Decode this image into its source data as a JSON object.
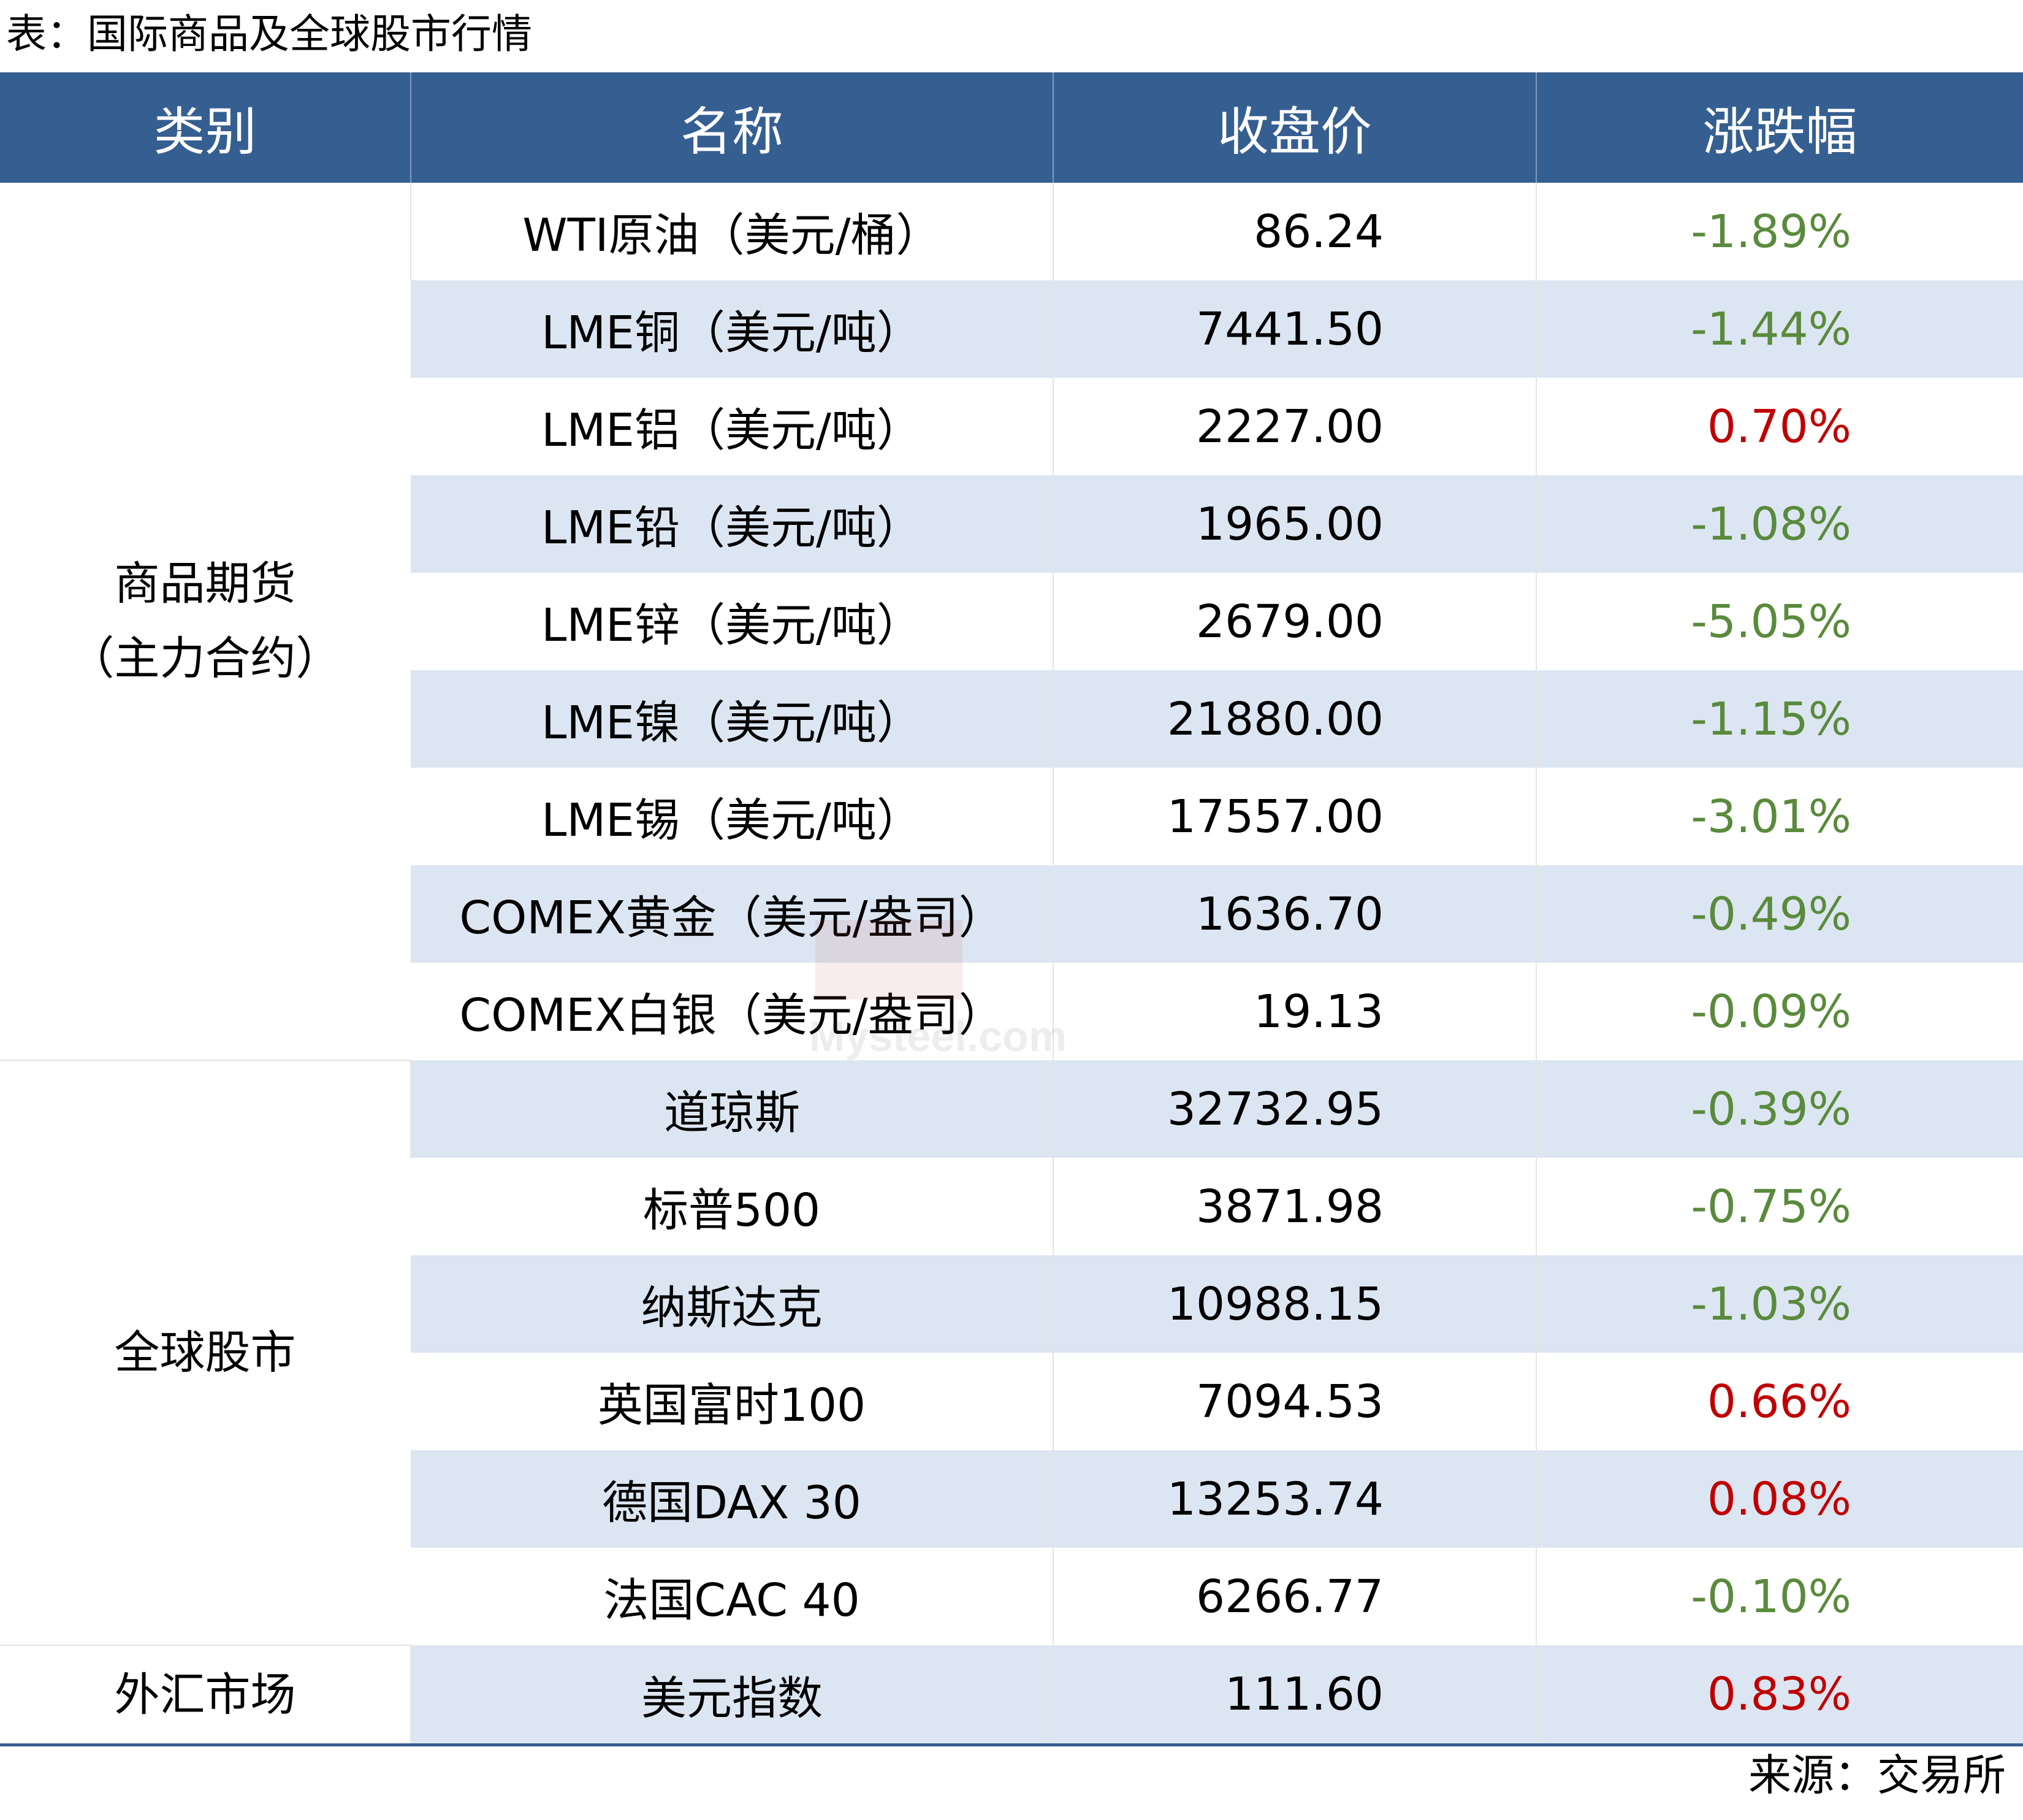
{
  "caption": "表：国际商品及全球股市行情",
  "header": {
    "col_category": "类别",
    "col_name": "名称",
    "col_close": "收盘价",
    "col_change": "涨跌幅"
  },
  "groups": [
    {
      "line1": "商品期货",
      "line2": "（主力合约）"
    },
    {
      "line1": "全球股市"
    },
    {
      "line1": "外汇市场"
    }
  ],
  "rows": [
    {
      "name": "WTI原油（美元/桶）",
      "close": "86.24",
      "change": "-1.89%",
      "direction": "down"
    },
    {
      "name": "LME铜（美元/吨）",
      "close": "7441.50",
      "change": "-1.44%",
      "direction": "down"
    },
    {
      "name": "LME铝（美元/吨）",
      "close": "2227.00",
      "change": "0.70%",
      "direction": "up"
    },
    {
      "name": "LME铅（美元/吨）",
      "close": "1965.00",
      "change": "-1.08%",
      "direction": "down"
    },
    {
      "name": "LME锌（美元/吨）",
      "close": "2679.00",
      "change": "-5.05%",
      "direction": "down"
    },
    {
      "name": "LME镍（美元/吨）",
      "close": "21880.00",
      "change": "-1.15%",
      "direction": "down"
    },
    {
      "name": "LME锡（美元/吨）",
      "close": "17557.00",
      "change": "-3.01%",
      "direction": "down"
    },
    {
      "name": "COMEX黄金（美元/盎司）",
      "close": "1636.70",
      "change": "-0.49%",
      "direction": "down"
    },
    {
      "name": "COMEX白银（美元/盎司）",
      "close": "19.13",
      "change": "-0.09%",
      "direction": "down"
    },
    {
      "name": "道琼斯",
      "close": "32732.95",
      "change": "-0.39%",
      "direction": "down"
    },
    {
      "name": "标普500",
      "close": "3871.98",
      "change": "-0.75%",
      "direction": "down"
    },
    {
      "name": "纳斯达克",
      "close": "10988.15",
      "change": "-1.03%",
      "direction": "down"
    },
    {
      "name": "英国富时100",
      "close": "7094.53",
      "change": "0.66%",
      "direction": "up"
    },
    {
      "name": "德国DAX 30",
      "close": "13253.74",
      "change": "0.08%",
      "direction": "up"
    },
    {
      "name": "法国CAC 40",
      "close": "6266.77",
      "change": "-0.10%",
      "direction": "down"
    },
    {
      "name": "美元指数",
      "close": "111.60",
      "change": "0.83%",
      "direction": "up"
    }
  ],
  "watermark": "Mysteel.com",
  "source": "来源：交易所",
  "colors": {
    "header_bg": "#365f91",
    "row_shade": "#dce6f2",
    "negative": "#5a8a3c",
    "positive": "#c00000"
  }
}
